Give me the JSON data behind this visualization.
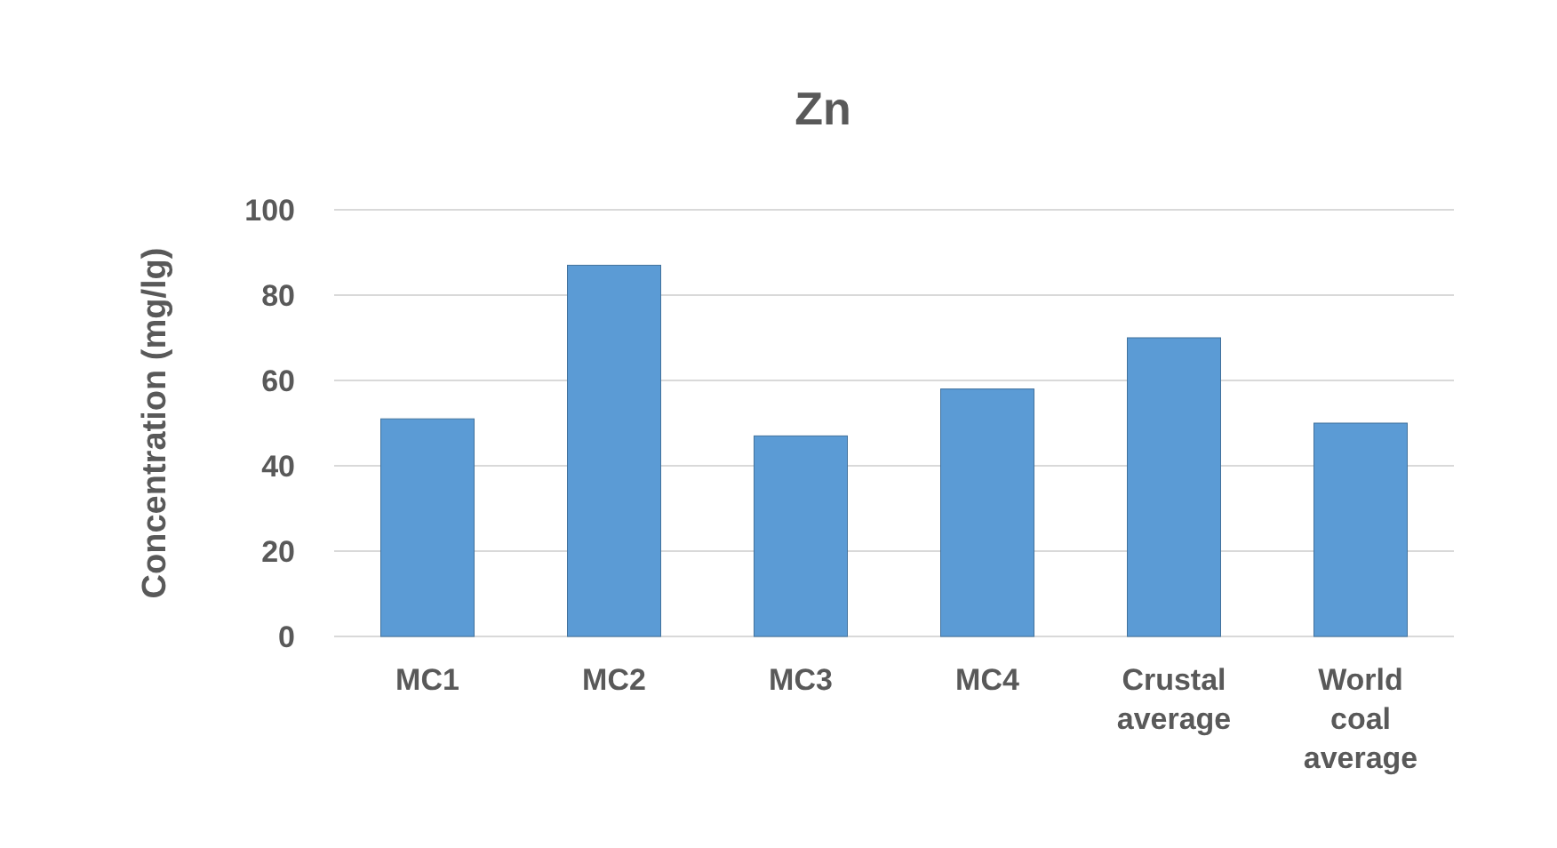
{
  "chart_data": {
    "type": "bar",
    "title": "Zn",
    "ylabel": "Concentration (mg/lg)",
    "categories": [
      "MC1",
      "MC2",
      "MC3",
      "MC4",
      "Crustal average",
      "World coal average"
    ],
    "values": [
      51,
      87,
      47,
      58,
      70,
      50
    ],
    "color": "#5b9bd5",
    "ylim": [
      0,
      100
    ],
    "yticks": [
      0,
      20,
      40,
      60,
      80,
      100
    ],
    "grid": "y"
  }
}
